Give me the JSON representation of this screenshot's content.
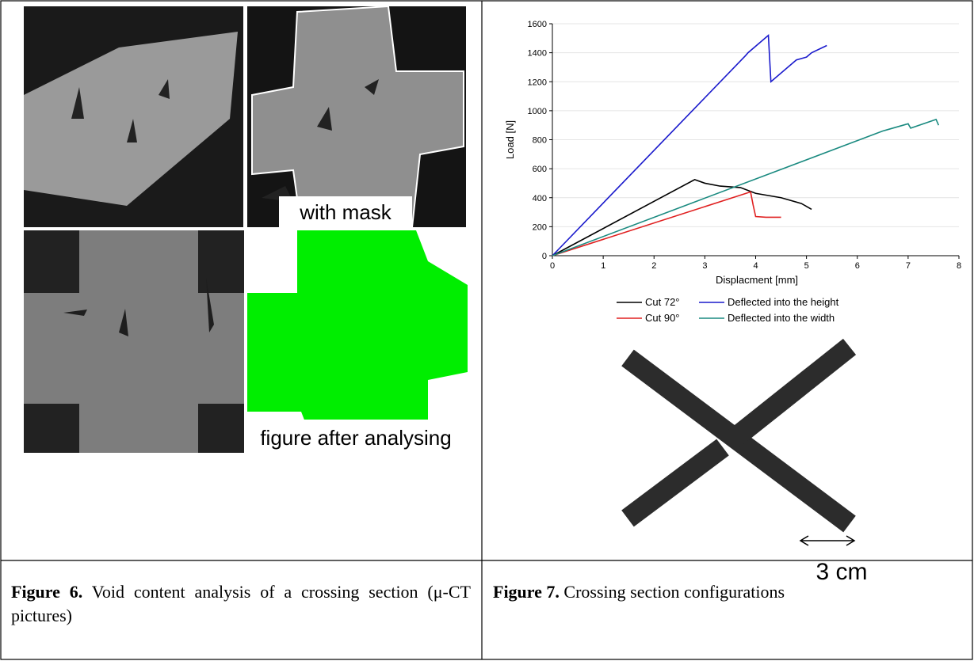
{
  "figure6": {
    "mask_label": "with mask",
    "analysed_label": "figure after analysing",
    "caption": {
      "label": "Figure 6.",
      "text": "Void content analysis of a crossing section (μ-CT pictures)"
    }
  },
  "figure7": {
    "scale_label": "3 cm",
    "caption": {
      "label": "Figure 7.",
      "text": "Crossing section configurations"
    }
  },
  "chart_data": {
    "type": "line",
    "xlabel": "Displacment [mm]",
    "ylabel": "Load [N]",
    "xlim": [
      0,
      8
    ],
    "ylim": [
      0,
      1600
    ],
    "xticks": [
      0,
      1,
      2,
      3,
      4,
      5,
      6,
      7,
      8
    ],
    "yticks": [
      0,
      200,
      400,
      600,
      800,
      1000,
      1200,
      1400,
      1600
    ],
    "grid": true,
    "series": [
      {
        "name": "Cut 72°",
        "color": "#000000",
        "x": [
          0,
          2.8,
          3.0,
          3.3,
          3.7,
          4.0,
          4.5,
          4.9,
          5.1
        ],
        "values": [
          0,
          525,
          500,
          480,
          470,
          430,
          400,
          360,
          320
        ]
      },
      {
        "name": "Deflected into the height",
        "color": "#1a1acc",
        "x": [
          0,
          3.8,
          3.85,
          4.25,
          4.3,
          4.8,
          5.0,
          5.1,
          5.4
        ],
        "values": [
          0,
          1380,
          1400,
          1520,
          1200,
          1350,
          1370,
          1400,
          1450
        ]
      },
      {
        "name": "Cut 90°",
        "color": "#e02020",
        "x": [
          0,
          3.9,
          3.95,
          4.0,
          4.2,
          4.5
        ],
        "values": [
          0,
          440,
          350,
          270,
          265,
          265
        ]
      },
      {
        "name": "Deflected into the width",
        "color": "#1a8a80",
        "x": [
          0,
          6.5,
          6.6,
          7.0,
          7.05,
          7.55,
          7.6
        ],
        "values": [
          0,
          860,
          870,
          910,
          880,
          940,
          900
        ]
      }
    ]
  }
}
